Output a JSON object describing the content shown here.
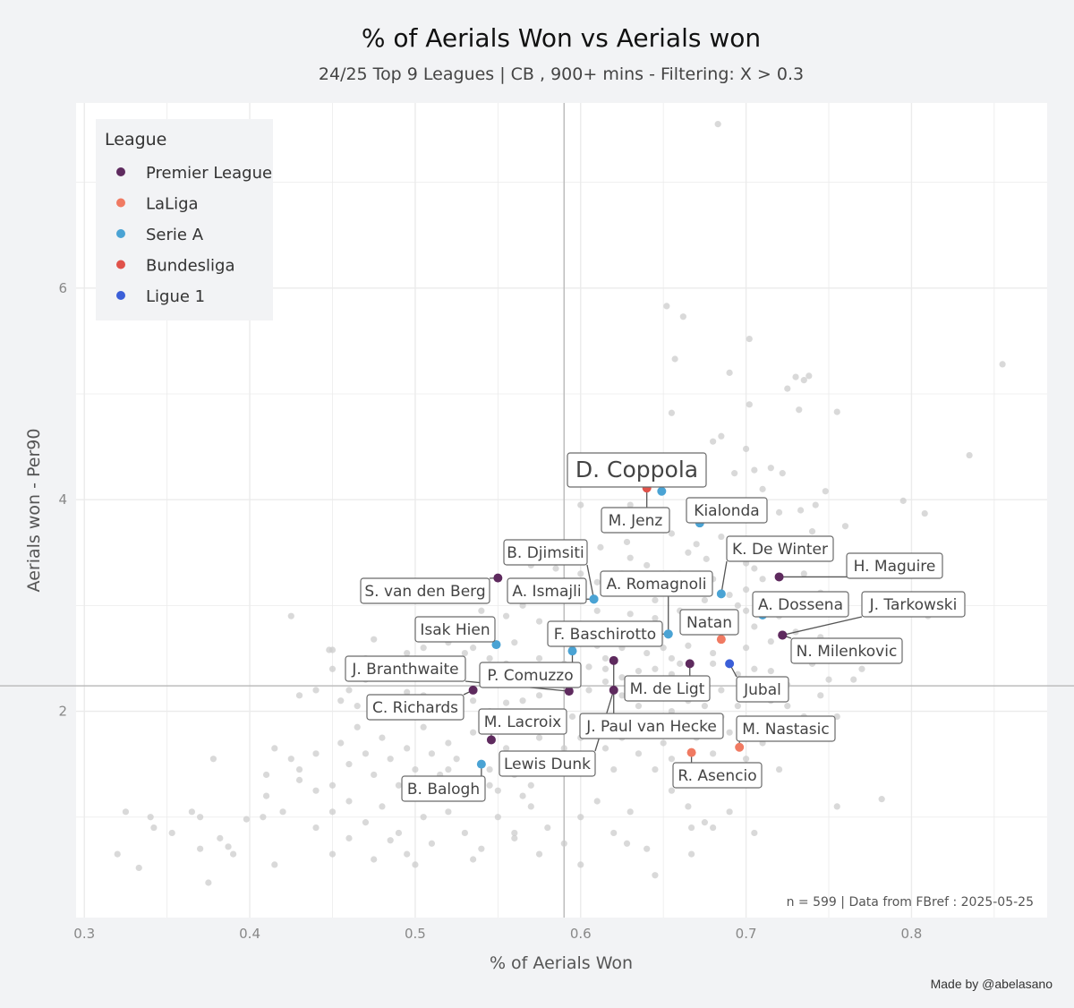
{
  "chart_data": {
    "type": "scatter",
    "title": "% of Aerials Won  vs  Aerials won",
    "subtitle": "24/25 Top 9 Leagues | CB , 900+ mins - Filtering: X > 0.3",
    "xlabel": "% of Aerials Won",
    "ylabel": "Aerials won  -  Per90",
    "xlim": [
      0.295,
      0.882
    ],
    "ylim": [
      0.05,
      7.75
    ],
    "xticks": [
      0.3,
      0.4,
      0.5,
      0.6,
      0.7,
      0.8
    ],
    "xtick_labels": [
      "0.3",
      "0.4",
      "0.5",
      "0.6",
      "0.7",
      "0.8"
    ],
    "yticks": [
      2,
      4,
      6
    ],
    "ytick_labels": [
      "2",
      "4",
      "6"
    ],
    "grid": true,
    "reference_lines": {
      "x": 0.59,
      "y": 2.24
    },
    "legend": {
      "title": "League",
      "position": "top-left",
      "items": [
        {
          "name": "Premier League",
          "color": "#5e2a5e"
        },
        {
          "name": "LaLiga",
          "color": "#f07a62"
        },
        {
          "name": "Serie A",
          "color": "#4aa3d4"
        },
        {
          "name": "Bundesliga",
          "color": "#e0524a"
        },
        {
          "name": "Ligue 1",
          "color": "#3b5fd8"
        }
      ]
    },
    "highlighted": [
      {
        "name": "D. Coppola",
        "league": "Serie A",
        "x": 0.649,
        "y": 4.08
      },
      {
        "name": "M. Jenz",
        "league": "Bundesliga",
        "x": 0.64,
        "y": 4.11
      },
      {
        "name": "Kialonda",
        "league": "Serie A",
        "x": 0.672,
        "y": 3.78
      },
      {
        "name": "K. De Winter",
        "league": "Serie A",
        "x": 0.685,
        "y": 3.11
      },
      {
        "name": "H. Maguire",
        "league": "Premier League",
        "x": 0.72,
        "y": 3.27
      },
      {
        "name": "A. Dossena",
        "league": "Serie A",
        "x": 0.71,
        "y": 2.91
      },
      {
        "name": "J. Tarkowski",
        "league": "Premier League",
        "x": 0.722,
        "y": 2.72
      },
      {
        "name": "N. Milenkovic",
        "league": "Premier League",
        "x": 0.722,
        "y": 2.72
      },
      {
        "name": "B. Djimsiti",
        "league": "Serie A",
        "x": 0.608,
        "y": 3.06
      },
      {
        "name": "A. Romagnoli",
        "league": "Serie A",
        "x": 0.653,
        "y": 2.73
      },
      {
        "name": "A. Ismajli",
        "league": "Serie A",
        "x": 0.608,
        "y": 3.06
      },
      {
        "name": "S. van den Berg",
        "league": "Premier League",
        "x": 0.55,
        "y": 3.26
      },
      {
        "name": "Natan",
        "league": "LaLiga",
        "x": 0.685,
        "y": 2.68
      },
      {
        "name": "F. Baschirotto",
        "league": "Serie A",
        "x": 0.653,
        "y": 2.73
      },
      {
        "name": "Isak Hien",
        "league": "Serie A",
        "x": 0.549,
        "y": 2.63
      },
      {
        "name": "J. Branthwaite",
        "league": "Premier League",
        "x": 0.593,
        "y": 2.19
      },
      {
        "name": "P. Comuzzo",
        "league": "Serie A",
        "x": 0.595,
        "y": 2.57
      },
      {
        "name": "M. de Ligt",
        "league": "Premier League",
        "x": 0.666,
        "y": 2.45
      },
      {
        "name": "Jubal",
        "league": "Ligue 1",
        "x": 0.69,
        "y": 2.45
      },
      {
        "name": "C. Richards",
        "league": "Premier League",
        "x": 0.535,
        "y": 2.2
      },
      {
        "name": "M. Lacroix",
        "league": "Premier League",
        "x": 0.546,
        "y": 1.73
      },
      {
        "name": "J. Paul van Hecke",
        "league": "Premier League",
        "x": 0.62,
        "y": 2.48
      },
      {
        "name": "M. Nastasic",
        "league": "LaLiga",
        "x": 0.696,
        "y": 1.66
      },
      {
        "name": "Lewis Dunk",
        "league": "Premier League",
        "x": 0.62,
        "y": 2.2
      },
      {
        "name": "R. Asencio",
        "league": "LaLiga",
        "x": 0.667,
        "y": 1.61
      },
      {
        "name": "B. Balogh",
        "league": "Serie A",
        "x": 0.54,
        "y": 1.5
      }
    ],
    "background_points": [
      [
        0.683,
        7.55
      ],
      [
        0.855,
        5.28
      ],
      [
        0.652,
        5.83
      ],
      [
        0.662,
        5.73
      ],
      [
        0.702,
        5.52
      ],
      [
        0.657,
        5.33
      ],
      [
        0.69,
        5.2
      ],
      [
        0.73,
        5.16
      ],
      [
        0.735,
        5.13
      ],
      [
        0.738,
        5.17
      ],
      [
        0.725,
        5.05
      ],
      [
        0.732,
        4.85
      ],
      [
        0.755,
        4.83
      ],
      [
        0.702,
        4.9
      ],
      [
        0.655,
        4.82
      ],
      [
        0.835,
        4.42
      ],
      [
        0.68,
        4.55
      ],
      [
        0.685,
        4.6
      ],
      [
        0.7,
        4.48
      ],
      [
        0.67,
        4.32
      ],
      [
        0.715,
        4.3
      ],
      [
        0.705,
        4.28
      ],
      [
        0.693,
        4.25
      ],
      [
        0.722,
        4.25
      ],
      [
        0.71,
        4.1
      ],
      [
        0.748,
        4.08
      ],
      [
        0.742,
        3.95
      ],
      [
        0.733,
        3.9
      ],
      [
        0.72,
        3.88
      ],
      [
        0.705,
        3.82
      ],
      [
        0.795,
        3.99
      ],
      [
        0.808,
        3.87
      ],
      [
        0.76,
        3.75
      ],
      [
        0.74,
        3.7
      ],
      [
        0.71,
        3.62
      ],
      [
        0.595,
        4.25
      ],
      [
        0.6,
        3.95
      ],
      [
        0.63,
        3.95
      ],
      [
        0.65,
        3.88
      ],
      [
        0.64,
        3.75
      ],
      [
        0.628,
        3.6
      ],
      [
        0.612,
        3.55
      ],
      [
        0.63,
        3.45
      ],
      [
        0.665,
        3.5
      ],
      [
        0.676,
        3.44
      ],
      [
        0.69,
        3.55
      ],
      [
        0.7,
        3.4
      ],
      [
        0.71,
        3.25
      ],
      [
        0.735,
        3.3
      ],
      [
        0.745,
        3.12
      ],
      [
        0.76,
        3.05
      ],
      [
        0.728,
        3.0
      ],
      [
        0.72,
        2.9
      ],
      [
        0.73,
        2.75
      ],
      [
        0.745,
        2.7
      ],
      [
        0.755,
        2.56
      ],
      [
        0.77,
        2.4
      ],
      [
        0.765,
        2.3
      ],
      [
        0.81,
        2.9
      ],
      [
        0.6,
        3.3
      ],
      [
        0.58,
        3.2
      ],
      [
        0.57,
        3.38
      ],
      [
        0.56,
        3.1
      ],
      [
        0.59,
        3.05
      ],
      [
        0.61,
        2.95
      ],
      [
        0.63,
        2.92
      ],
      [
        0.645,
        2.88
      ],
      [
        0.66,
        2.95
      ],
      [
        0.675,
        2.9
      ],
      [
        0.69,
        2.82
      ],
      [
        0.705,
        2.8
      ],
      [
        0.715,
        2.66
      ],
      [
        0.7,
        2.6
      ],
      [
        0.68,
        2.55
      ],
      [
        0.665,
        2.62
      ],
      [
        0.655,
        2.5
      ],
      [
        0.64,
        2.55
      ],
      [
        0.625,
        2.6
      ],
      [
        0.615,
        2.5
      ],
      [
        0.605,
        2.42
      ],
      [
        0.59,
        2.45
      ],
      [
        0.575,
        2.5
      ],
      [
        0.565,
        2.38
      ],
      [
        0.555,
        2.45
      ],
      [
        0.545,
        2.5
      ],
      [
        0.53,
        2.55
      ],
      [
        0.52,
        2.45
      ],
      [
        0.51,
        2.42
      ],
      [
        0.5,
        2.35
      ],
      [
        0.49,
        2.38
      ],
      [
        0.48,
        2.45
      ],
      [
        0.47,
        2.3
      ],
      [
        0.46,
        2.2
      ],
      [
        0.448,
        2.58
      ],
      [
        0.45,
        2.4
      ],
      [
        0.44,
        2.2
      ],
      [
        0.43,
        2.15
      ],
      [
        0.455,
        2.1
      ],
      [
        0.465,
        2.05
      ],
      [
        0.475,
        2.0
      ],
      [
        0.485,
        2.1
      ],
      [
        0.495,
        2.18
      ],
      [
        0.505,
        2.15
      ],
      [
        0.515,
        2.1
      ],
      [
        0.525,
        2.05
      ],
      [
        0.535,
        2.1
      ],
      [
        0.545,
        2.0
      ],
      [
        0.555,
        2.08
      ],
      [
        0.565,
        2.1
      ],
      [
        0.575,
        2.15
      ],
      [
        0.585,
        2.25
      ],
      [
        0.595,
        2.3
      ],
      [
        0.605,
        2.2
      ],
      [
        0.615,
        2.28
      ],
      [
        0.625,
        2.32
      ],
      [
        0.635,
        2.38
      ],
      [
        0.645,
        2.4
      ],
      [
        0.655,
        2.35
      ],
      [
        0.665,
        2.28
      ],
      [
        0.675,
        2.3
      ],
      [
        0.685,
        2.2
      ],
      [
        0.695,
        2.35
      ],
      [
        0.705,
        2.2
      ],
      [
        0.715,
        2.1
      ],
      [
        0.725,
        2.05
      ],
      [
        0.735,
        1.95
      ],
      [
        0.745,
        2.15
      ],
      [
        0.755,
        1.95
      ],
      [
        0.42,
        1.05
      ],
      [
        0.425,
        1.55
      ],
      [
        0.41,
        1.4
      ],
      [
        0.415,
        1.65
      ],
      [
        0.43,
        1.35
      ],
      [
        0.44,
        1.6
      ],
      [
        0.45,
        1.3
      ],
      [
        0.455,
        1.7
      ],
      [
        0.46,
        1.5
      ],
      [
        0.465,
        1.85
      ],
      [
        0.47,
        1.6
      ],
      [
        0.475,
        1.4
      ],
      [
        0.48,
        1.75
      ],
      [
        0.485,
        1.55
      ],
      [
        0.49,
        1.3
      ],
      [
        0.495,
        1.65
      ],
      [
        0.5,
        1.45
      ],
      [
        0.505,
        1.85
      ],
      [
        0.51,
        1.6
      ],
      [
        0.515,
        1.4
      ],
      [
        0.52,
        1.7
      ],
      [
        0.525,
        1.55
      ],
      [
        0.53,
        1.3
      ],
      [
        0.535,
        1.8
      ],
      [
        0.545,
        1.45
      ],
      [
        0.55,
        1.25
      ],
      [
        0.555,
        1.65
      ],
      [
        0.56,
        1.4
      ],
      [
        0.565,
        1.55
      ],
      [
        0.57,
        1.3
      ],
      [
        0.575,
        1.75
      ],
      [
        0.58,
        1.5
      ],
      [
        0.585,
        1.85
      ],
      [
        0.59,
        1.65
      ],
      [
        0.595,
        1.95
      ],
      [
        0.6,
        1.75
      ],
      [
        0.605,
        1.55
      ],
      [
        0.61,
        1.85
      ],
      [
        0.615,
        1.65
      ],
      [
        0.62,
        1.45
      ],
      [
        0.625,
        1.75
      ],
      [
        0.63,
        1.9
      ],
      [
        0.635,
        1.6
      ],
      [
        0.64,
        1.8
      ],
      [
        0.645,
        1.45
      ],
      [
        0.65,
        1.7
      ],
      [
        0.655,
        1.55
      ],
      [
        0.66,
        1.85
      ],
      [
        0.67,
        1.75
      ],
      [
        0.675,
        1.45
      ],
      [
        0.68,
        1.6
      ],
      [
        0.69,
        1.8
      ],
      [
        0.7,
        1.55
      ],
      [
        0.71,
        1.7
      ],
      [
        0.72,
        1.45
      ],
      [
        0.44,
        0.9
      ],
      [
        0.45,
        1.05
      ],
      [
        0.46,
        0.8
      ],
      [
        0.47,
        0.95
      ],
      [
        0.48,
        1.1
      ],
      [
        0.49,
        0.85
      ],
      [
        0.5,
        0.55
      ],
      [
        0.505,
        1.0
      ],
      [
        0.51,
        0.75
      ],
      [
        0.52,
        1.05
      ],
      [
        0.53,
        0.85
      ],
      [
        0.54,
        0.7
      ],
      [
        0.55,
        1.0
      ],
      [
        0.56,
        0.85
      ],
      [
        0.57,
        1.1
      ],
      [
        0.58,
        0.9
      ],
      [
        0.59,
        0.75
      ],
      [
        0.6,
        1.0
      ],
      [
        0.61,
        1.15
      ],
      [
        0.62,
        0.85
      ],
      [
        0.63,
        1.05
      ],
      [
        0.64,
        0.7
      ],
      [
        0.655,
        1.25
      ],
      [
        0.665,
        1.1
      ],
      [
        0.675,
        0.95
      ],
      [
        0.69,
        1.05
      ],
      [
        0.705,
        0.85
      ],
      [
        0.32,
        0.65
      ],
      [
        0.325,
        1.05
      ],
      [
        0.333,
        0.52
      ],
      [
        0.34,
        1.0
      ],
      [
        0.342,
        0.9
      ],
      [
        0.353,
        0.85
      ],
      [
        0.365,
        1.05
      ],
      [
        0.37,
        1.0
      ],
      [
        0.37,
        0.7
      ],
      [
        0.375,
        0.38
      ],
      [
        0.378,
        1.55
      ],
      [
        0.382,
        0.8
      ],
      [
        0.387,
        0.72
      ],
      [
        0.39,
        0.65
      ],
      [
        0.398,
        0.98
      ],
      [
        0.408,
        1.0
      ],
      [
        0.41,
        1.2
      ],
      [
        0.415,
        0.55
      ],
      [
        0.43,
        1.45
      ],
      [
        0.44,
        1.25
      ],
      [
        0.45,
        0.65
      ],
      [
        0.46,
        1.15
      ],
      [
        0.475,
        0.6
      ],
      [
        0.485,
        0.78
      ],
      [
        0.495,
        0.65
      ],
      [
        0.5,
        1.2
      ],
      [
        0.51,
        1.3
      ],
      [
        0.52,
        1.45
      ],
      [
        0.535,
        0.6
      ],
      [
        0.545,
        1.3
      ],
      [
        0.56,
        0.8
      ],
      [
        0.565,
        1.2
      ],
      [
        0.575,
        0.65
      ],
      [
        0.6,
        0.55
      ],
      [
        0.628,
        0.75
      ],
      [
        0.645,
        0.45
      ],
      [
        0.667,
        0.65
      ],
      [
        0.667,
        0.9
      ],
      [
        0.68,
        0.9
      ],
      [
        0.755,
        1.1
      ],
      [
        0.782,
        1.17
      ],
      [
        0.595,
        2.6
      ],
      [
        0.585,
        2.7
      ],
      [
        0.575,
        2.85
      ],
      [
        0.56,
        2.65
      ],
      [
        0.545,
        2.75
      ],
      [
        0.535,
        2.6
      ],
      [
        0.52,
        2.65
      ],
      [
        0.505,
        2.6
      ],
      [
        0.495,
        2.55
      ],
      [
        0.47,
        2.5
      ],
      [
        0.425,
        2.9
      ],
      [
        0.45,
        2.58
      ],
      [
        0.475,
        2.68
      ],
      [
        0.515,
        2.75
      ],
      [
        0.525,
        2.85
      ],
      [
        0.54,
        2.95
      ],
      [
        0.555,
        2.9
      ],
      [
        0.565,
        3.0
      ],
      [
        0.62,
        2.7
      ],
      [
        0.63,
        2.82
      ],
      [
        0.64,
        2.68
      ],
      [
        0.65,
        2.6
      ],
      [
        0.67,
        2.75
      ],
      [
        0.68,
        2.45
      ],
      [
        0.66,
        2.45
      ],
      [
        0.67,
        3.2
      ],
      [
        0.68,
        3.25
      ],
      [
        0.695,
        3.0
      ],
      [
        0.7,
        3.15
      ],
      [
        0.655,
        3.15
      ],
      [
        0.64,
        3.22
      ],
      [
        0.625,
        3.3
      ],
      [
        0.61,
        3.22
      ],
      [
        0.62,
        3.15
      ],
      [
        0.645,
        3.05
      ],
      [
        0.66,
        3.3
      ],
      [
        0.675,
        3.05
      ],
      [
        0.69,
        3.1
      ],
      [
        0.7,
        2.95
      ],
      [
        0.705,
        3.35
      ],
      [
        0.715,
        3.45
      ],
      [
        0.7,
        3.6
      ],
      [
        0.685,
        3.65
      ],
      [
        0.67,
        3.58
      ],
      [
        0.655,
        3.68
      ],
      [
        0.64,
        3.38
      ],
      [
        0.6,
        3.45
      ],
      [
        0.585,
        3.35
      ],
      [
        0.57,
        3.15
      ],
      [
        0.59,
        2.82
      ],
      [
        0.6,
        2.75
      ],
      [
        0.61,
        2.62
      ],
      [
        0.615,
        2.4
      ],
      [
        0.625,
        2.15
      ],
      [
        0.635,
        2.05
      ],
      [
        0.645,
        2.2
      ],
      [
        0.655,
        2.0
      ],
      [
        0.665,
        2.1
      ],
      [
        0.675,
        2.05
      ],
      [
        0.685,
        1.95
      ],
      [
        0.695,
        2.05
      ],
      [
        0.705,
        2.4
      ],
      [
        0.715,
        2.38
      ],
      [
        0.725,
        2.25
      ],
      [
        0.74,
        2.45
      ],
      [
        0.75,
        2.3
      ]
    ],
    "annotation": "n =  599  | Data from  FBref : 2025-05-25"
  },
  "credit": "Made by @abelasano"
}
